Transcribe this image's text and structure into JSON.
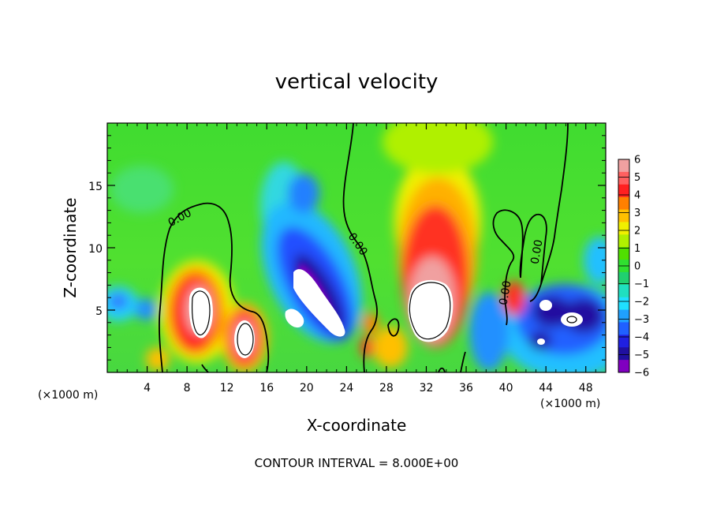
{
  "chart_data": {
    "type": "heatmap",
    "title": "vertical velocity",
    "xlabel": "X-coordinate",
    "ylabel": "Z-coordinate",
    "x_unit": "(×1000 m)",
    "x_unit_right": "(×1000 m)",
    "xlim": [
      0,
      50
    ],
    "ylim": [
      0,
      20
    ],
    "x_ticks": [
      "4",
      "8",
      "12",
      "16",
      "20",
      "24",
      "28",
      "32",
      "36",
      "40",
      "44",
      "48"
    ],
    "y_ticks": [
      "5",
      "10",
      "15"
    ],
    "colorbar": {
      "min": -6,
      "max": 6,
      "ticks": [
        "6",
        "5",
        "4",
        "3",
        "2",
        "1",
        "0",
        "−1",
        "−2",
        "−3",
        "−4",
        "−5",
        "−6"
      ],
      "colors": [
        "#f0a0a0",
        "#ff6060",
        "#ff2020",
        "#ff8000",
        "#ffc000",
        "#f0f000",
        "#b0f000",
        "#50e000",
        "#30e030",
        "#20d070",
        "#20e0c0",
        "#20e0ff",
        "#20a0ff",
        "#2060ff",
        "#2020e0",
        "#2010a0",
        "#8000c0"
      ]
    },
    "contour_labels": [
      "0.00",
      "0.00",
      "0.00",
      "0.00",
      "0.00"
    ],
    "footer": "CONTOUR INTERVAL = 8.000E+00"
  }
}
